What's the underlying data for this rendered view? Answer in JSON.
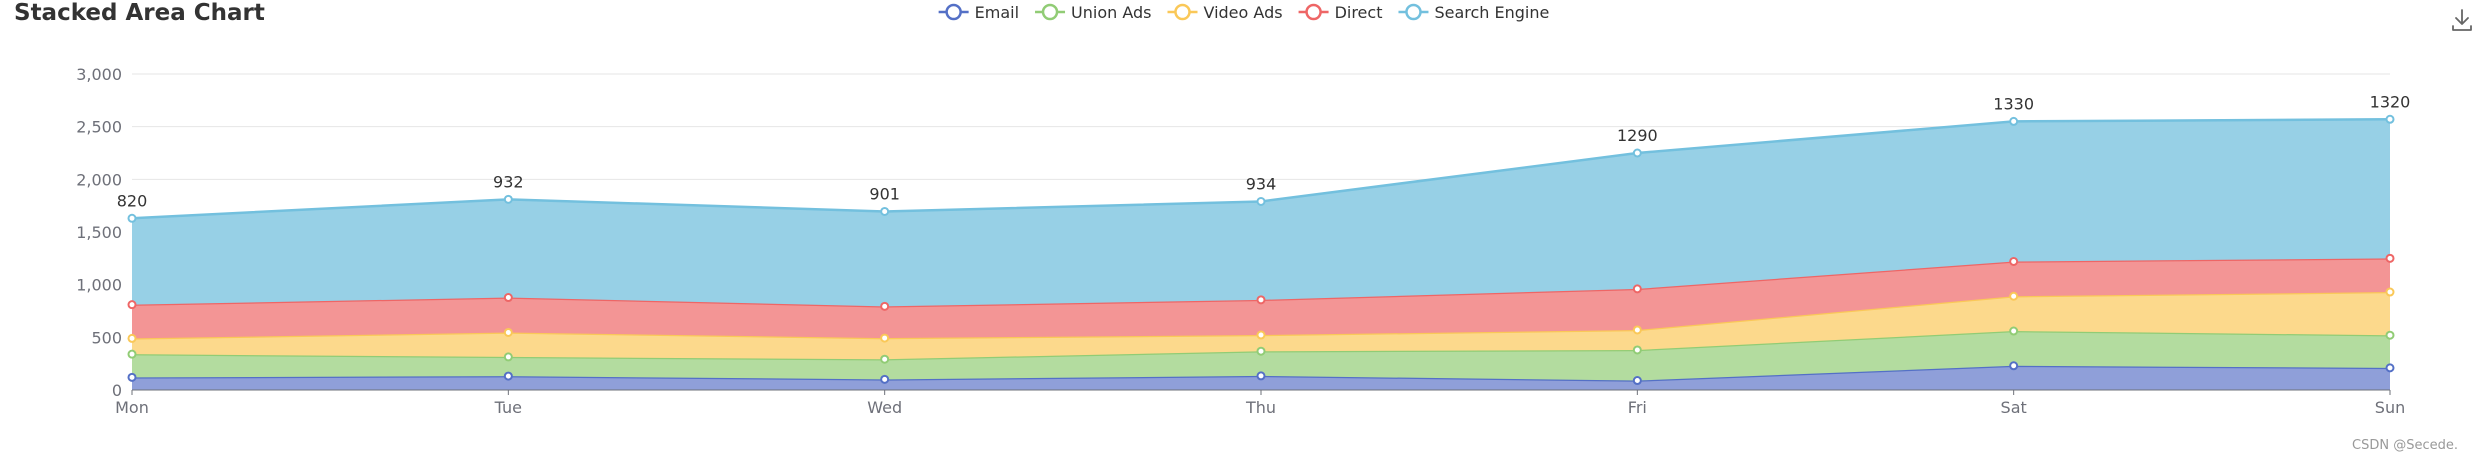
{
  "chart_data": {
    "type": "area",
    "stacked": true,
    "title": "Stacked Area Chart",
    "categories": [
      "Mon",
      "Tue",
      "Wed",
      "Thu",
      "Fri",
      "Sat",
      "Sun"
    ],
    "ylim": [
      0,
      3000
    ],
    "yticks": [
      0,
      500,
      1000,
      1500,
      2000,
      2500,
      3000
    ],
    "ytick_labels": [
      "0",
      "500",
      "1,000",
      "1,500",
      "2,000",
      "2,500",
      "3,000"
    ],
    "grid": true,
    "legend_position": "top-center",
    "series": [
      {
        "name": "Email",
        "values": [
          120,
          132,
          101,
          134,
          90,
          230,
          210
        ],
        "color": "#5470c6",
        "fill": "#8f9fd9"
      },
      {
        "name": "Union Ads",
        "values": [
          220,
          182,
          191,
          234,
          290,
          330,
          310
        ],
        "color": "#91cc75",
        "fill": "#b3dc9f"
      },
      {
        "name": "Video Ads",
        "values": [
          150,
          232,
          201,
          154,
          190,
          330,
          410
        ],
        "color": "#fac858",
        "fill": "#fcd98c"
      },
      {
        "name": "Direct",
        "values": [
          320,
          332,
          301,
          334,
          390,
          330,
          320
        ],
        "color": "#ee6666",
        "fill": "#f39595"
      },
      {
        "name": "Search Engine",
        "values": [
          820,
          932,
          901,
          934,
          1290,
          1330,
          1320
        ],
        "color": "#73c0de",
        "fill": "#97d0e6",
        "show_labels": true
      }
    ]
  },
  "watermark": "CSDN @Secede.",
  "download_icon": "download-icon"
}
